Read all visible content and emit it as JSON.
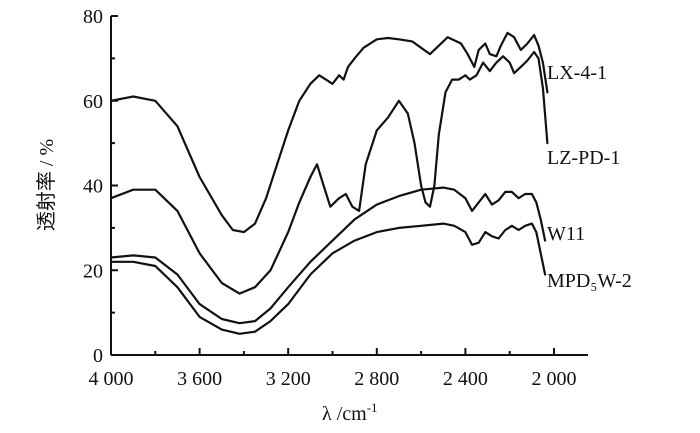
{
  "chart_data": {
    "type": "line",
    "xlabel": "λ /cm",
    "xlabel_sup": "-1",
    "ylabel": "透射率 / %",
    "xlim": [
      4000,
      1850
    ],
    "ylim": [
      0,
      80
    ],
    "x_reversed": true,
    "x_ticks": [
      4000,
      3600,
      3200,
      2800,
      2400,
      2000
    ],
    "x_tick_labels": [
      "4 000",
      "3 600",
      "3 200",
      "2 800",
      "2 400",
      "2 000"
    ],
    "y_ticks": [
      0,
      20,
      40,
      60,
      80
    ],
    "y_tick_labels": [
      "0",
      "20",
      "40",
      "60",
      "80"
    ],
    "series": [
      {
        "name": "LX-4-1",
        "points": [
          [
            4000,
            60
          ],
          [
            3900,
            61
          ],
          [
            3800,
            60
          ],
          [
            3700,
            54
          ],
          [
            3600,
            42
          ],
          [
            3500,
            33
          ],
          [
            3450,
            29.5
          ],
          [
            3400,
            29
          ],
          [
            3350,
            31
          ],
          [
            3300,
            37
          ],
          [
            3250,
            45
          ],
          [
            3200,
            53
          ],
          [
            3150,
            60
          ],
          [
            3100,
            64
          ],
          [
            3060,
            66
          ],
          [
            3030,
            65
          ],
          [
            3000,
            64
          ],
          [
            2970,
            66
          ],
          [
            2950,
            65
          ],
          [
            2930,
            68
          ],
          [
            2900,
            70
          ],
          [
            2860,
            72.5
          ],
          [
            2800,
            74.5
          ],
          [
            2750,
            74.8
          ],
          [
            2700,
            74.5
          ],
          [
            2640,
            74
          ],
          [
            2600,
            72.5
          ],
          [
            2560,
            71
          ],
          [
            2520,
            73
          ],
          [
            2480,
            75
          ],
          [
            2440,
            74
          ],
          [
            2420,
            73.5
          ],
          [
            2390,
            71
          ],
          [
            2360,
            68
          ],
          [
            2340,
            72
          ],
          [
            2310,
            73.5
          ],
          [
            2290,
            71
          ],
          [
            2260,
            70.5
          ],
          [
            2240,
            73
          ],
          [
            2210,
            76
          ],
          [
            2180,
            75
          ],
          [
            2150,
            72
          ],
          [
            2120,
            73.5
          ],
          [
            2090,
            75.5
          ],
          [
            2070,
            73
          ],
          [
            2050,
            69
          ],
          [
            2030,
            62
          ]
        ]
      },
      {
        "name": "LZ-PD-1",
        "points": [
          [
            4000,
            37
          ],
          [
            3900,
            39
          ],
          [
            3800,
            39
          ],
          [
            3700,
            34
          ],
          [
            3600,
            24
          ],
          [
            3500,
            17
          ],
          [
            3420,
            14.5
          ],
          [
            3350,
            16
          ],
          [
            3280,
            20
          ],
          [
            3200,
            29
          ],
          [
            3150,
            36
          ],
          [
            3100,
            42
          ],
          [
            3070,
            45
          ],
          [
            3040,
            40
          ],
          [
            3010,
            35
          ],
          [
            2970,
            37
          ],
          [
            2940,
            38
          ],
          [
            2910,
            35
          ],
          [
            2880,
            34
          ],
          [
            2850,
            45
          ],
          [
            2800,
            53
          ],
          [
            2750,
            56
          ],
          [
            2700,
            60
          ],
          [
            2660,
            57
          ],
          [
            2630,
            50
          ],
          [
            2600,
            40
          ],
          [
            2580,
            36
          ],
          [
            2560,
            35
          ],
          [
            2540,
            40
          ],
          [
            2520,
            52
          ],
          [
            2490,
            62
          ],
          [
            2460,
            65
          ],
          [
            2430,
            65
          ],
          [
            2400,
            66
          ],
          [
            2380,
            65
          ],
          [
            2350,
            66
          ],
          [
            2320,
            69
          ],
          [
            2290,
            67
          ],
          [
            2260,
            69
          ],
          [
            2230,
            70.5
          ],
          [
            2200,
            69
          ],
          [
            2180,
            66.5
          ],
          [
            2150,
            68
          ],
          [
            2120,
            69.5
          ],
          [
            2090,
            71.5
          ],
          [
            2070,
            70
          ],
          [
            2050,
            63
          ],
          [
            2030,
            50
          ]
        ]
      },
      {
        "name": "W11",
        "points": [
          [
            4000,
            23
          ],
          [
            3900,
            23.5
          ],
          [
            3800,
            23
          ],
          [
            3700,
            19
          ],
          [
            3600,
            12
          ],
          [
            3500,
            8.5
          ],
          [
            3420,
            7.5
          ],
          [
            3350,
            8
          ],
          [
            3280,
            11
          ],
          [
            3200,
            16
          ],
          [
            3100,
            22
          ],
          [
            3000,
            27
          ],
          [
            2900,
            32
          ],
          [
            2800,
            35.5
          ],
          [
            2700,
            37.5
          ],
          [
            2600,
            39
          ],
          [
            2500,
            39.5
          ],
          [
            2450,
            39
          ],
          [
            2400,
            37
          ],
          [
            2370,
            34
          ],
          [
            2340,
            36
          ],
          [
            2310,
            38
          ],
          [
            2280,
            35.5
          ],
          [
            2250,
            36.5
          ],
          [
            2220,
            38.5
          ],
          [
            2190,
            38.5
          ],
          [
            2160,
            37
          ],
          [
            2130,
            38
          ],
          [
            2100,
            38
          ],
          [
            2080,
            36
          ],
          [
            2060,
            32
          ],
          [
            2040,
            27
          ]
        ]
      },
      {
        "name": "MPD₅W-2",
        "points": [
          [
            4000,
            22
          ],
          [
            3900,
            22
          ],
          [
            3800,
            21
          ],
          [
            3700,
            16
          ],
          [
            3600,
            9
          ],
          [
            3500,
            6
          ],
          [
            3420,
            5
          ],
          [
            3350,
            5.5
          ],
          [
            3280,
            8
          ],
          [
            3200,
            12
          ],
          [
            3100,
            19
          ],
          [
            3000,
            24
          ],
          [
            2900,
            27
          ],
          [
            2800,
            29
          ],
          [
            2700,
            30
          ],
          [
            2600,
            30.5
          ],
          [
            2500,
            31
          ],
          [
            2450,
            30.5
          ],
          [
            2400,
            29
          ],
          [
            2370,
            26
          ],
          [
            2340,
            26.5
          ],
          [
            2310,
            29
          ],
          [
            2280,
            28
          ],
          [
            2250,
            27.5
          ],
          [
            2220,
            29.5
          ],
          [
            2190,
            30.5
          ],
          [
            2160,
            29.5
          ],
          [
            2130,
            30.5
          ],
          [
            2100,
            31
          ],
          [
            2080,
            29
          ],
          [
            2060,
            24
          ],
          [
            2040,
            19
          ]
        ]
      }
    ]
  }
}
